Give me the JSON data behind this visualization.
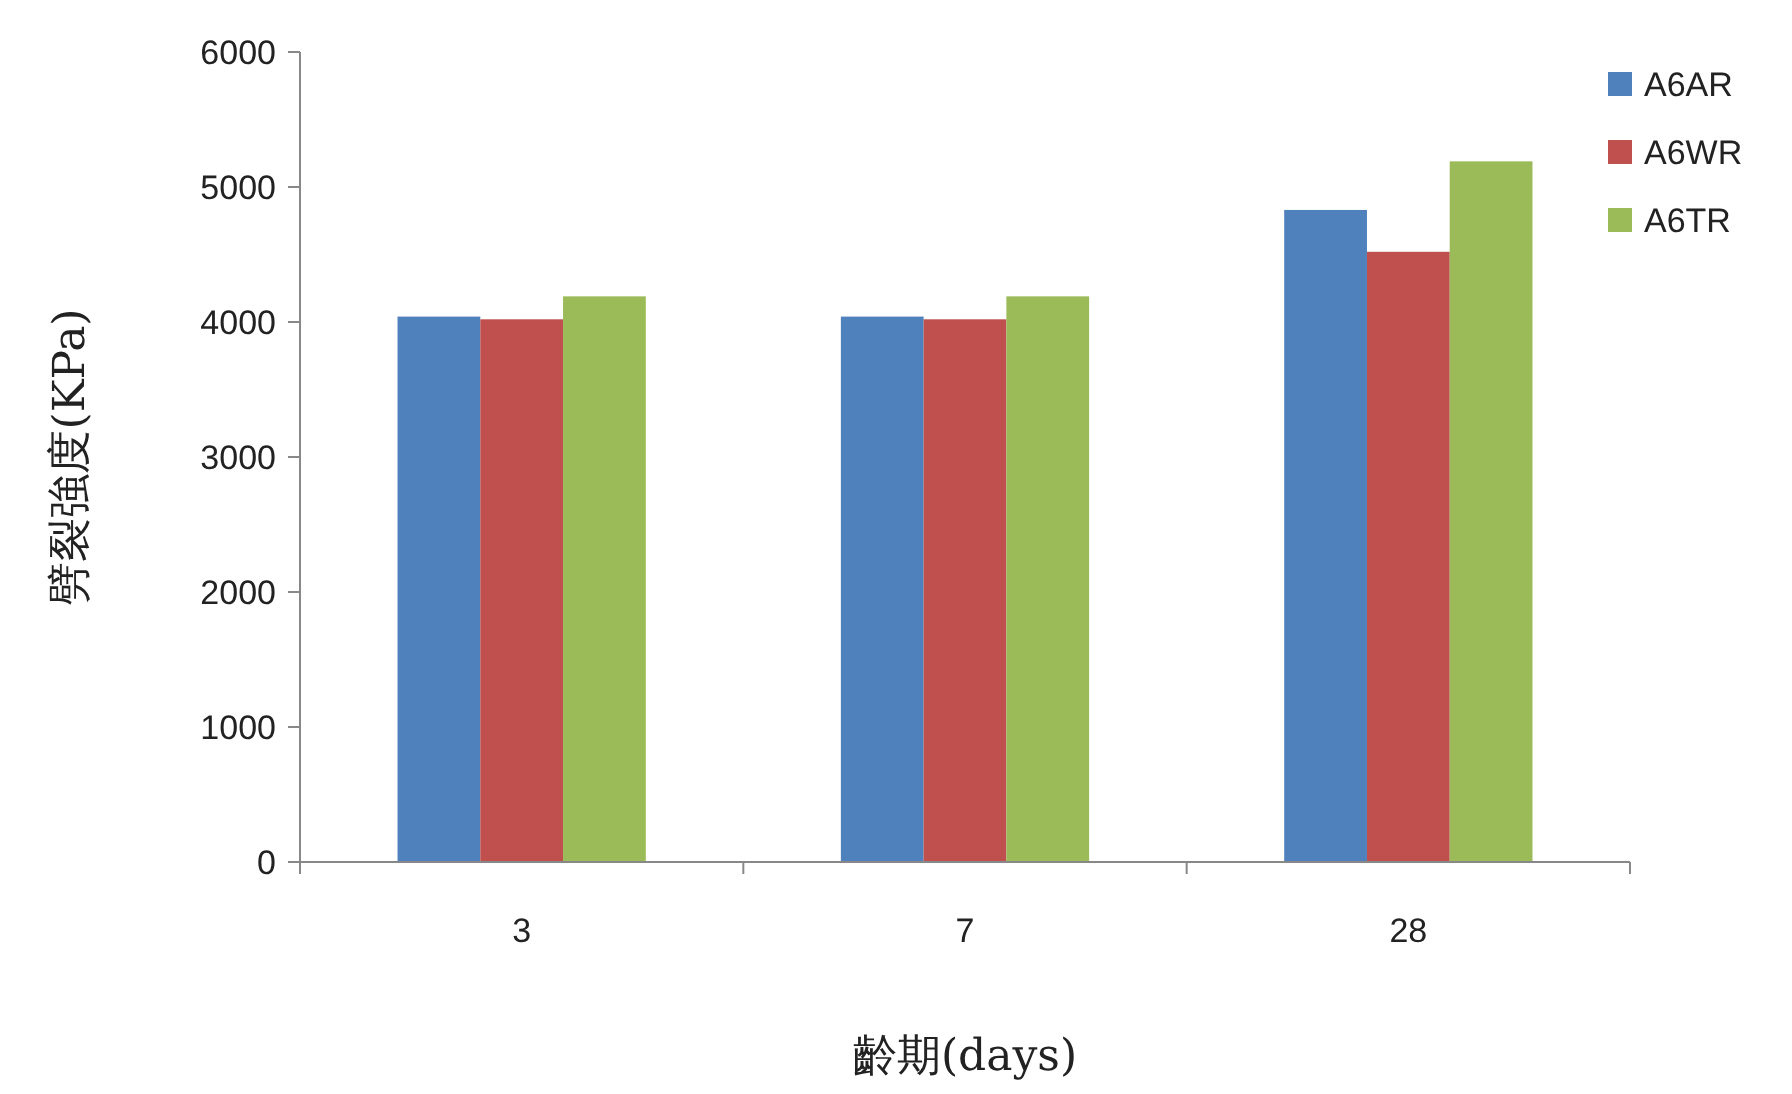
{
  "chart_data": {
    "type": "bar",
    "xlabel": "齡期(days)",
    "ylabel": "劈裂強度(KPa)",
    "categories": [
      "3",
      "7",
      "28"
    ],
    "series": [
      {
        "name": "A6AR",
        "color": "#4f81bd",
        "values": [
          4040,
          4040,
          4830
        ]
      },
      {
        "name": "A6WR",
        "color": "#c0504d",
        "values": [
          4020,
          4020,
          4520
        ]
      },
      {
        "name": "A6TR",
        "color": "#9bbb59",
        "values": [
          4190,
          4190,
          5190
        ]
      }
    ],
    "ylim": [
      0,
      6000
    ],
    "yticks": [
      0,
      1000,
      2000,
      3000,
      4000,
      5000,
      6000
    ],
    "grid": false,
    "legend": "right"
  }
}
